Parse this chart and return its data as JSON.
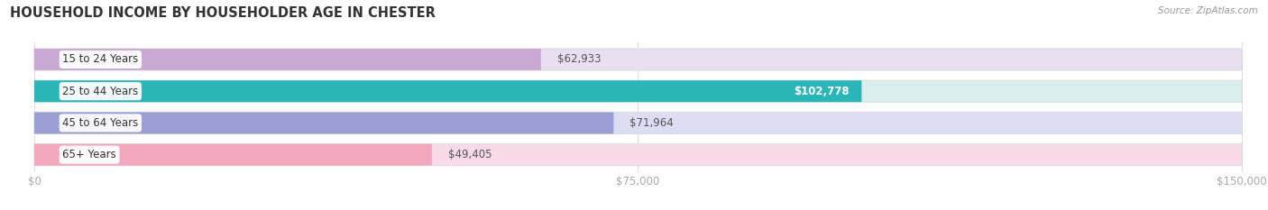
{
  "title": "HOUSEHOLD INCOME BY HOUSEHOLDER AGE IN CHESTER",
  "source": "Source: ZipAtlas.com",
  "categories": [
    "15 to 24 Years",
    "25 to 44 Years",
    "45 to 64 Years",
    "65+ Years"
  ],
  "values": [
    62933,
    102778,
    71964,
    49405
  ],
  "bar_colors": [
    "#c9a8d4",
    "#2ab5b8",
    "#9b9fd4",
    "#f4a8c0"
  ],
  "bar_bg_colors": [
    "#e8e0f0",
    "#daeef0",
    "#ddddf5",
    "#f9dae8"
  ],
  "value_label_colors": [
    "#555555",
    "#ffffff",
    "#555555",
    "#555555"
  ],
  "value_labels": [
    "$62,933",
    "$102,778",
    "$71,964",
    "$49,405"
  ],
  "x_max": 150000,
  "x_ticks": [
    0,
    75000,
    150000
  ],
  "x_tick_labels": [
    "$0",
    "$75,000",
    "$150,000"
  ],
  "background_color": "#ffffff",
  "plot_bg_color": "#ffffff",
  "grid_color": "#dddddd",
  "bar_border_color": "#dddddd"
}
